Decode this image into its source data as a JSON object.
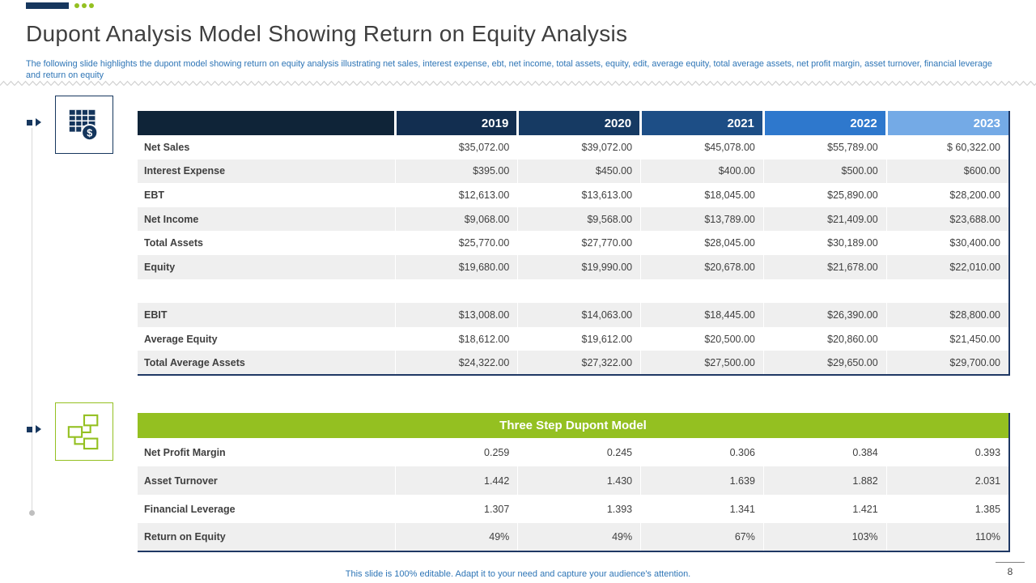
{
  "slide": {
    "title": "Dupont Analysis Model Showing Return on Equity Analysis",
    "subtitle": "The following slide highlights the dupont model showing return on equity analysis illustrating net sales, interest expense, ebt, net income, total assets, equity, edit, average equity, total average assets, net profit margin, asset turnover, financial leverage and return on equity",
    "footer": "This slide is 100% editable. Adapt it to your need and capture your audience's attention.",
    "page_number": "8"
  },
  "colors": {
    "navy": "#17375e",
    "green": "#94c021",
    "accent_text": "#2e75b6",
    "row_alt": "#efefef",
    "header_columns": [
      "#0f2438",
      "#122e50",
      "#163a63",
      "#1d4e86",
      "#2e78cd",
      "#74aae6"
    ]
  },
  "tables": {
    "main": {
      "columns": [
        "",
        "2019",
        "2020",
        "2021",
        "2022",
        "2023"
      ],
      "rows": [
        {
          "label": "Net Sales",
          "values": [
            "$35,072.00",
            "$39,072.00",
            "$45,078.00",
            "$55,789.00",
            "$ 60,322.00"
          ]
        },
        {
          "label": "Interest Expense",
          "values": [
            "$395.00",
            "$450.00",
            "$400.00",
            "$500.00",
            "$600.00"
          ]
        },
        {
          "label": "EBT",
          "values": [
            "$12,613.00",
            "$13,613.00",
            "$18,045.00",
            "$25,890.00",
            "$28,200.00"
          ]
        },
        {
          "label": "Net Income",
          "values": [
            "$9,068.00",
            "$9,568.00",
            "$13,789.00",
            "$21,409.00",
            "$23,688.00"
          ]
        },
        {
          "label": "Total Assets",
          "values": [
            "$25,770.00",
            "$27,770.00",
            "$28,045.00",
            "$30,189.00",
            "$30,400.00"
          ]
        },
        {
          "label": "Equity",
          "values": [
            "$19,680.00",
            "$19,990.00",
            "$20,678.00",
            "$21,678.00",
            "$22,010.00"
          ]
        },
        {
          "label": "",
          "values": [
            "",
            "",
            "",
            "",
            ""
          ]
        },
        {
          "label": "EBIT",
          "values": [
            "$13,008.00",
            "$14,063.00",
            "$18,445.00",
            "$26,390.00",
            "$28,800.00"
          ]
        },
        {
          "label": "Average Equity",
          "values": [
            "$18,612.00",
            "$19,612.00",
            "$20,500.00",
            "$20,860.00",
            "$21,450.00"
          ]
        },
        {
          "label": "Total Average Assets",
          "values": [
            "$24,322.00",
            "$27,322.00",
            "$27,500.00",
            "$29,650.00",
            "$29,700.00"
          ]
        }
      ]
    },
    "dupont": {
      "header": "Three Step Dupont Model",
      "rows": [
        {
          "label": "Net Profit Margin",
          "values": [
            "0.259",
            "0.245",
            "0.306",
            "0.384",
            "0.393"
          ]
        },
        {
          "label": "Asset Turnover",
          "values": [
            "1.442",
            "1.430",
            "1.639",
            "1.882",
            "2.031"
          ]
        },
        {
          "label": "Financial Leverage",
          "values": [
            "1.307",
            "1.393",
            "1.341",
            "1.421",
            "1.385"
          ]
        },
        {
          "label": "Return on Equity",
          "values": [
            "49%",
            "49%",
            "67%",
            "103%",
            "110%"
          ]
        }
      ]
    }
  }
}
